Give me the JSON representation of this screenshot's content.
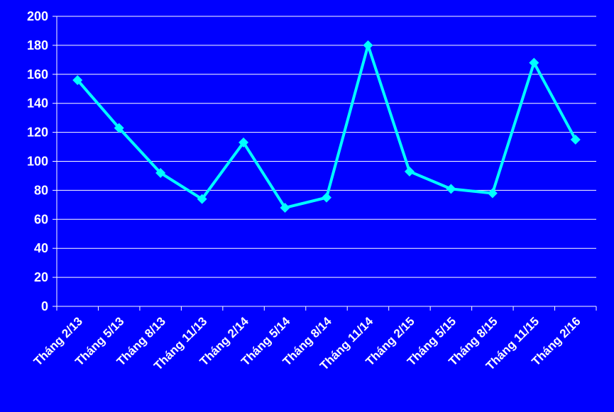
{
  "chart_data": {
    "type": "line",
    "categories": [
      "Tháng 2/13",
      "Tháng 5/13",
      "Tháng 8/13",
      "Tháng 11/13",
      "Tháng 2/14",
      "Tháng 5/14",
      "Tháng 8/14",
      "Tháng 11/14",
      "Tháng 2/15",
      "Tháng 5/15",
      "Tháng 8/15",
      "Tháng 11/15",
      "Tháng 2/16"
    ],
    "series": [
      {
        "values": [
          156,
          123,
          92,
          74,
          113,
          68,
          75,
          180,
          93,
          81,
          78,
          168,
          115
        ]
      }
    ],
    "ylim": [
      0,
      200
    ],
    "yticks": [
      "0",
      "20",
      "40",
      "60",
      "80",
      "100",
      "120",
      "140",
      "160",
      "180",
      "200"
    ],
    "grid": true,
    "legend": "none",
    "colors": {
      "background": "#0000FF",
      "line": "#00FFFF",
      "grid": "#FFFFFF",
      "text": "#FFFFFF"
    }
  }
}
